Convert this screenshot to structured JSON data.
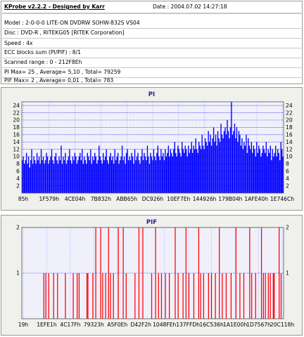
{
  "header": {
    "title": "KProbe v2.2.2 - Designed by Karr",
    "date": "Date : 2004.07.02 14:27:18"
  },
  "info": {
    "model": "Model : 2-0-0-0 LITE-ON DVDRW SOHW-832S  VS04",
    "disc": "Disc : DVD-R , RITEKG05 [RITEK Corporation]",
    "speed": "Speed : 4x",
    "ecc": "ECC blocks sum (PI/PIF) : 8/1",
    "range": "Scanned range : 0 - 212F8Eh",
    "pi": "PI Max= 25 , Average= 5,10 , Total= 79259",
    "pif": "PIF Max= 2 , Average= 0,01 , Total= 783"
  },
  "colors": {
    "pi_bar": "#0000ff",
    "pif_bar": "#ff0000",
    "grid": "#0000ff",
    "plot_bg": "#f0f0fa",
    "title_text": "#22229a"
  },
  "chart_data": [
    {
      "type": "bar",
      "title": "PI",
      "series_color": "#0000ff",
      "ylim": [
        0,
        25
      ],
      "yticks": [
        "2",
        "4",
        "6",
        "8",
        "10",
        "12",
        "14",
        "16",
        "18",
        "20",
        "22",
        "24"
      ],
      "xtick_labels": [
        "85h",
        "1F579h",
        "4CE04h",
        "7B832h",
        "ABB65h",
        "DC926h",
        "10EF7Eh",
        "144926h",
        "179B04h",
        "1AFE40h",
        "1E746Ch"
      ],
      "grid": true,
      "values": [
        9,
        10,
        8,
        9,
        11,
        8,
        10,
        7,
        9,
        12,
        8,
        10,
        9,
        8,
        11,
        9,
        10,
        8,
        12,
        9,
        10,
        8,
        9,
        11,
        10,
        8,
        9,
        10,
        12,
        9,
        8,
        10,
        11,
        9,
        8,
        10,
        9,
        13,
        8,
        10,
        9,
        11,
        8,
        9,
        10,
        12,
        9,
        8,
        10,
        9,
        11,
        10,
        8,
        9,
        10,
        11,
        9,
        12,
        8,
        10,
        9,
        8,
        11,
        10,
        9,
        12,
        8,
        10,
        9,
        11,
        10,
        8,
        9,
        13,
        10,
        9,
        8,
        11,
        9,
        10,
        12,
        9,
        8,
        10,
        11,
        9,
        10,
        8,
        12,
        9,
        10,
        11,
        8,
        9,
        10,
        13,
        9,
        10,
        8,
        11,
        12,
        9,
        10,
        9,
        11,
        10,
        8,
        12,
        9,
        10,
        11,
        9,
        8,
        10,
        12,
        9,
        11,
        10,
        9,
        13,
        10,
        8,
        11,
        10,
        9,
        12,
        10,
        9,
        11,
        13,
        10,
        9,
        12,
        10,
        11,
        9,
        12,
        10,
        11,
        13,
        10,
        12,
        11,
        10,
        12,
        14,
        11,
        10,
        13,
        12,
        11,
        10,
        14,
        12,
        11,
        13,
        12,
        10,
        13,
        11,
        12,
        14,
        11,
        13,
        12,
        15,
        12,
        11,
        14,
        13,
        12,
        16,
        13,
        12,
        15,
        14,
        13,
        17,
        14,
        16,
        13,
        15,
        18,
        14,
        16,
        13,
        17,
        15,
        14,
        19,
        16,
        15,
        17,
        18,
        16,
        20,
        17,
        15,
        18,
        25,
        16,
        17,
        19,
        15,
        18,
        14,
        17,
        16,
        13,
        15,
        12,
        14,
        13,
        16,
        11,
        15,
        13,
        12,
        14,
        11,
        13,
        12,
        10,
        14,
        11,
        13,
        12,
        10,
        11,
        13,
        12,
        11,
        14,
        10,
        12,
        11,
        13,
        9,
        12,
        10,
        11,
        13,
        10,
        12,
        11,
        9,
        14,
        12,
        10
      ]
    },
    {
      "type": "bar",
      "title": "PIF",
      "series_color": "#ff0000",
      "ylim": [
        0,
        2
      ],
      "yticks": [
        "1",
        "2"
      ],
      "xtick_labels": [
        "19h",
        "1EFE1h",
        "4C17Fh",
        "79323h",
        "A5F0Eh",
        "D42F2h",
        "1048FEh",
        "137FFDh",
        "16C536h",
        "1A1E00h",
        "1D7567h",
        "20C118h"
      ],
      "grid": true,
      "values": [
        0,
        0,
        0,
        0,
        0,
        0,
        0,
        0,
        0,
        0,
        0,
        0,
        0,
        0,
        0,
        0,
        0,
        0,
        0,
        0,
        0,
        0,
        1,
        0,
        1,
        0,
        0,
        1,
        0,
        0,
        0,
        0,
        1,
        0,
        0,
        0,
        1,
        0,
        0,
        0,
        0,
        0,
        0,
        0,
        1,
        0,
        0,
        0,
        0,
        0,
        0,
        0,
        1,
        0,
        0,
        0,
        1,
        0,
        1,
        0,
        0,
        0,
        0,
        0,
        0,
        0,
        1,
        1,
        0,
        0,
        0,
        0,
        1,
        0,
        0,
        2,
        0,
        0,
        0,
        0,
        2,
        0,
        1,
        0,
        0,
        1,
        0,
        0,
        2,
        0,
        1,
        0,
        0,
        1,
        0,
        0,
        0,
        0,
        2,
        0,
        0,
        0,
        0,
        2,
        0,
        0,
        1,
        0,
        0,
        0,
        0,
        0,
        0,
        0,
        0,
        1,
        0,
        0,
        0,
        2,
        0,
        0,
        0,
        2,
        0,
        0,
        0,
        0,
        0,
        0,
        0,
        0,
        1,
        0,
        0,
        0,
        2,
        0,
        0,
        1,
        0,
        0,
        1,
        0,
        0,
        0,
        1,
        0,
        0,
        0,
        1,
        0,
        0,
        0,
        0,
        0,
        2,
        0,
        0,
        1,
        0,
        0,
        0,
        0,
        1,
        0,
        0,
        2,
        0,
        0,
        1,
        0,
        0,
        0,
        0,
        1,
        0,
        0,
        0,
        0,
        2,
        0,
        1,
        0,
        0,
        1,
        0,
        0,
        0,
        0,
        1,
        0,
        0,
        1,
        0,
        0,
        0,
        1,
        0,
        0,
        0,
        2,
        0,
        0,
        1,
        0,
        0,
        0,
        1,
        0,
        0,
        0,
        0,
        1,
        0,
        0,
        0,
        0,
        2,
        0,
        0,
        0,
        1,
        0,
        0,
        0,
        1,
        0,
        0,
        0,
        0,
        0,
        2,
        0,
        1,
        0,
        0,
        0,
        1,
        0,
        0,
        0,
        0,
        0,
        2,
        0,
        1,
        0,
        1,
        0,
        0,
        1,
        0,
        1,
        0,
        0,
        1,
        1,
        0,
        0,
        0,
        0,
        2,
        0,
        1,
        0,
        0
      ]
    }
  ]
}
